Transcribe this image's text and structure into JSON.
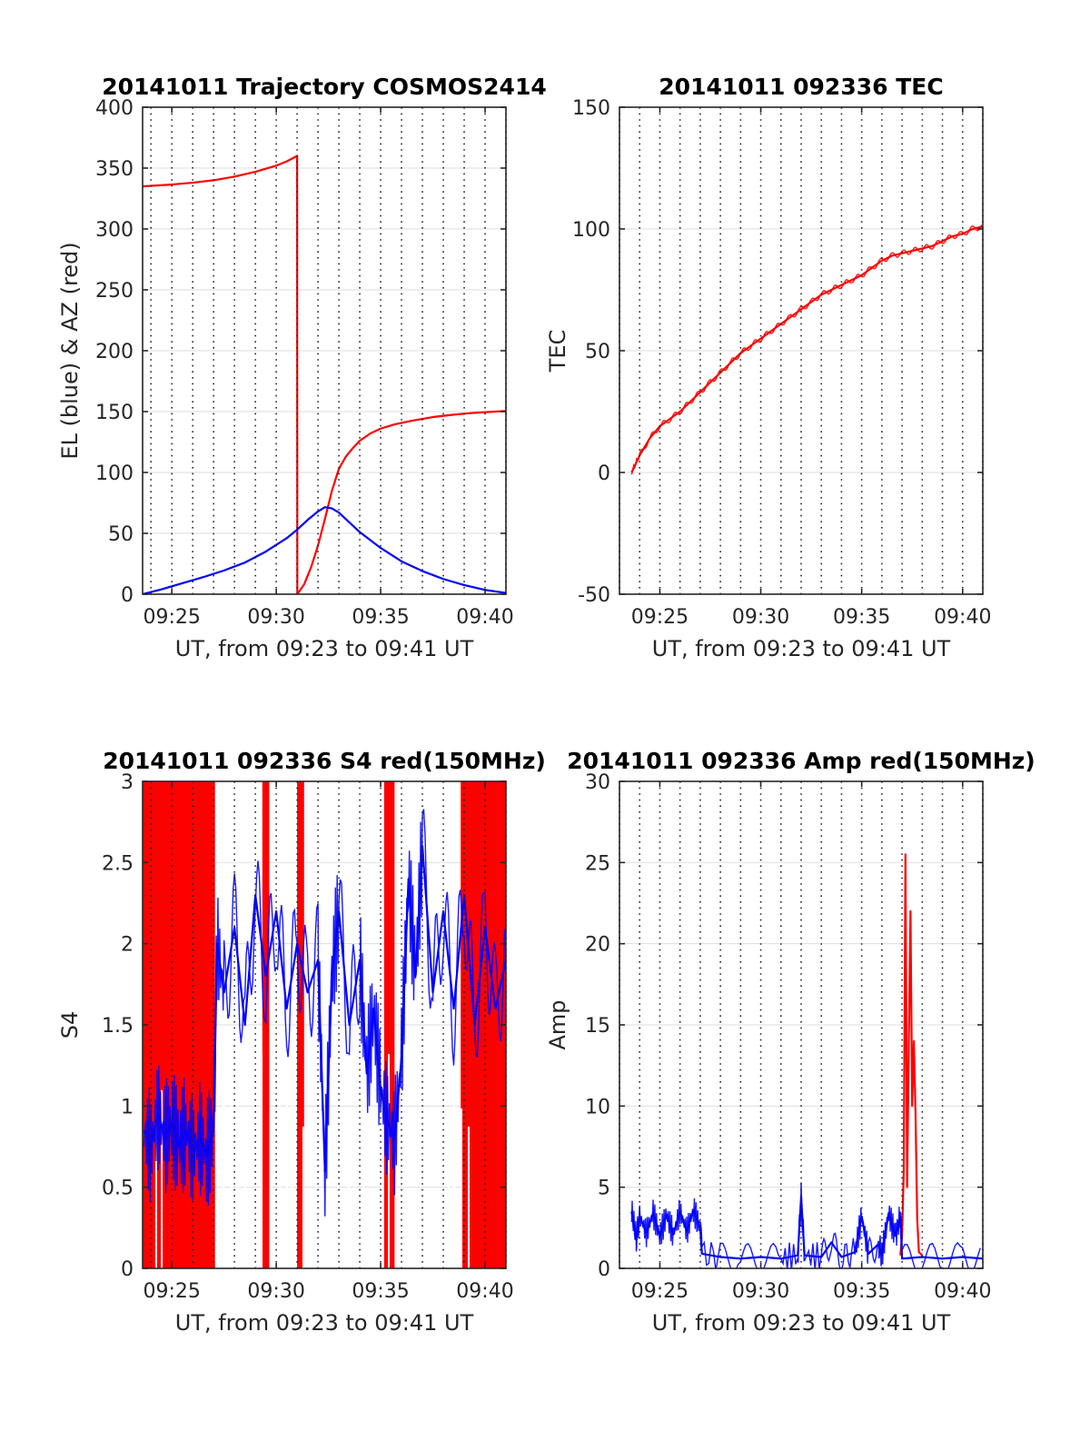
{
  "colors": {
    "el": "#0000ff",
    "az": "#ff0000",
    "tec": "#ff0000",
    "s4_red": "#ff0000",
    "s4_blue": "#0000ff",
    "amp_red": "#ff0000",
    "amp_blue": "#0000ff",
    "grid": "#262626",
    "hgrid": "#dedede"
  },
  "chart_data": [
    {
      "id": "trajectory",
      "type": "line",
      "title": "20141011 Trajectory COSMOS2414",
      "xlabel": "UT, from 09:23 to 09:41 UT",
      "ylabel": "EL (blue) & AZ (red)",
      "xlim": [
        "09:23:36",
        "09:41:00"
      ],
      "ylim": [
        0,
        400
      ],
      "yticks": [
        0,
        50,
        100,
        150,
        200,
        250,
        300,
        350,
        400
      ],
      "xticks": [
        {
          "t": "09:25:00",
          "label": "09:25"
        },
        {
          "t": "09:30:00",
          "label": "09:30"
        },
        {
          "t": "09:35:00",
          "label": "09:35"
        },
        {
          "t": "09:40:00",
          "label": "09:40"
        }
      ],
      "vgrid_every_minutes": 1,
      "series": [
        {
          "key": "az",
          "points": [
            [
              "09:23:36",
              335
            ],
            [
              "09:25:00",
              336.5
            ],
            [
              "09:26:00",
              338
            ],
            [
              "09:27:00",
              340
            ],
            [
              "09:28:00",
              343
            ],
            [
              "09:29:00",
              347
            ],
            [
              "09:30:00",
              352
            ],
            [
              "09:30:30",
              355.5
            ],
            [
              "09:31:00",
              360
            ],
            [
              "09:31:00.5",
              0
            ],
            [
              "09:31:20",
              8
            ],
            [
              "09:31:40",
              22
            ],
            [
              "09:32:00",
              40
            ],
            [
              "09:32:20",
              62
            ],
            [
              "09:32:40",
              85
            ],
            [
              "09:33:00",
              103
            ],
            [
              "09:33:20",
              113
            ],
            [
              "09:33:40",
              120
            ],
            [
              "09:34:00",
              126
            ],
            [
              "09:34:30",
              132
            ],
            [
              "09:35:00",
              136
            ],
            [
              "09:35:40",
              139.5
            ],
            [
              "09:36:30",
              142.5
            ],
            [
              "09:37:30",
              145.5
            ],
            [
              "09:38:30",
              147.5
            ],
            [
              "09:39:30",
              149
            ],
            [
              "09:40:30",
              150
            ],
            [
              "09:41:00",
              150.5
            ]
          ]
        },
        {
          "key": "el",
          "points": [
            [
              "09:23:36",
              0
            ],
            [
              "09:24:30",
              4
            ],
            [
              "09:25:30",
              9
            ],
            [
              "09:26:30",
              14
            ],
            [
              "09:27:30",
              19.5
            ],
            [
              "09:28:30",
              26
            ],
            [
              "09:29:30",
              35
            ],
            [
              "09:30:30",
              46
            ],
            [
              "09:31:00",
              53
            ],
            [
              "09:31:30",
              61
            ],
            [
              "09:32:00",
              68
            ],
            [
              "09:32:20",
              71.5
            ],
            [
              "09:32:40",
              70.5
            ],
            [
              "09:33:00",
              67
            ],
            [
              "09:33:30",
              59
            ],
            [
              "09:34:00",
              51
            ],
            [
              "09:35:00",
              38
            ],
            [
              "09:36:00",
              27
            ],
            [
              "09:37:00",
              19
            ],
            [
              "09:38:00",
              12.5
            ],
            [
              "09:39:00",
              7.5
            ],
            [
              "09:40:00",
              3.5
            ],
            [
              "09:41:00",
              1
            ]
          ]
        }
      ]
    },
    {
      "id": "tec",
      "type": "line",
      "title": "20141011 092336 TEC",
      "xlabel": "UT, from 09:23 to 09:41 UT",
      "ylabel": "TEC",
      "xlim": [
        "09:23:00",
        "09:41:00"
      ],
      "ylim": [
        -50,
        150
      ],
      "yticks": [
        -50,
        0,
        50,
        100,
        150
      ],
      "xticks": [
        {
          "t": "09:25:00",
          "label": "09:25"
        },
        {
          "t": "09:30:00",
          "label": "09:30"
        },
        {
          "t": "09:35:00",
          "label": "09:35"
        },
        {
          "t": "09:40:00",
          "label": "09:40"
        }
      ],
      "vgrid_every_minutes": 1,
      "series": [
        {
          "key": "tec",
          "points": [
            [
              "09:23:36",
              0
            ],
            [
              "09:24:00",
              7
            ],
            [
              "09:24:30",
              14
            ],
            [
              "09:25:00",
              19
            ],
            [
              "09:25:30",
              22
            ],
            [
              "09:26:00",
              25
            ],
            [
              "09:26:30",
              29
            ],
            [
              "09:27:00",
              33
            ],
            [
              "09:27:30",
              37
            ],
            [
              "09:28:00",
              41
            ],
            [
              "09:28:30",
              45
            ],
            [
              "09:29:00",
              49
            ],
            [
              "09:29:30",
              52
            ],
            [
              "09:30:00",
              55
            ],
            [
              "09:30:30",
              58
            ],
            [
              "09:31:00",
              61
            ],
            [
              "09:31:30",
              64
            ],
            [
              "09:32:00",
              67
            ],
            [
              "09:32:30",
              70
            ],
            [
              "09:33:00",
              73
            ],
            [
              "09:33:30",
              75
            ],
            [
              "09:34:00",
              77
            ],
            [
              "09:34:30",
              79
            ],
            [
              "09:35:00",
              81
            ],
            [
              "09:35:30",
              84
            ],
            [
              "09:36:00",
              87
            ],
            [
              "09:36:30",
              89
            ],
            [
              "09:37:00",
              90
            ],
            [
              "09:37:30",
              91
            ],
            [
              "09:38:00",
              92
            ],
            [
              "09:38:30",
              93
            ],
            [
              "09:39:00",
              95
            ],
            [
              "09:39:30",
              97
            ],
            [
              "09:40:00",
              98
            ],
            [
              "09:40:30",
              100
            ],
            [
              "09:41:00",
              101
            ]
          ]
        }
      ]
    },
    {
      "id": "s4",
      "type": "line",
      "title": "20141011 092336 S4 red(150MHz)",
      "xlabel": "UT, from 09:23 to 09:41 UT",
      "ylabel": "S4",
      "xlim": [
        "09:23:36",
        "09:41:00"
      ],
      "ylim": [
        0,
        3
      ],
      "yticks": [
        0,
        0.5,
        1,
        1.5,
        2,
        2.5,
        3
      ],
      "xticks": [
        {
          "t": "09:25:00",
          "label": "09:25"
        },
        {
          "t": "09:30:00",
          "label": "09:30"
        },
        {
          "t": "09:35:00",
          "label": "09:35"
        },
        {
          "t": "09:40:00",
          "label": "09:40"
        }
      ],
      "vgrid_every_minutes": 1,
      "red_saturated_bands": [
        [
          "09:23:36",
          "09:27:04"
        ],
        [
          "09:29:20",
          "09:29:40"
        ],
        [
          "09:31:00",
          "09:31:20"
        ],
        [
          "09:35:10",
          "09:35:40"
        ],
        [
          "09:38:50",
          "09:41:00"
        ]
      ],
      "series": [
        {
          "key": "s4_blue",
          "points": [
            [
              "09:23:40",
              0.85
            ],
            [
              "09:24:00",
              0.75
            ],
            [
              "09:24:20",
              0.95
            ],
            [
              "09:24:40",
              0.8
            ],
            [
              "09:25:00",
              0.9
            ],
            [
              "09:25:20",
              0.75
            ],
            [
              "09:25:40",
              0.85
            ],
            [
              "09:26:00",
              0.72
            ],
            [
              "09:26:20",
              0.8
            ],
            [
              "09:26:40",
              0.7
            ],
            [
              "09:27:00",
              0.85
            ],
            [
              "09:27:10",
              2.0
            ],
            [
              "09:27:30",
              1.7
            ],
            [
              "09:28:00",
              2.1
            ],
            [
              "09:28:30",
              1.5
            ],
            [
              "09:29:00",
              2.3
            ],
            [
              "09:29:30",
              1.8
            ],
            [
              "09:30:00",
              2.2
            ],
            [
              "09:30:30",
              1.6
            ],
            [
              "09:31:00",
              2.0
            ],
            [
              "09:31:30",
              1.7
            ],
            [
              "09:32:00",
              1.9
            ],
            [
              "09:32:20",
              0.6
            ],
            [
              "09:32:40",
              1.8
            ],
            [
              "09:33:00",
              2.2
            ],
            [
              "09:33:30",
              1.5
            ],
            [
              "09:34:00",
              1.9
            ],
            [
              "09:34:20",
              1.2
            ],
            [
              "09:34:40",
              1.6
            ],
            [
              "09:35:00",
              1.1
            ],
            [
              "09:35:20",
              0.9
            ],
            [
              "09:35:40",
              0.8
            ],
            [
              "09:36:00",
              1.3
            ],
            [
              "09:36:20",
              2.4
            ],
            [
              "09:36:40",
              1.8
            ],
            [
              "09:37:00",
              2.6
            ],
            [
              "09:37:30",
              1.7
            ],
            [
              "09:38:00",
              2.2
            ],
            [
              "09:38:30",
              1.6
            ],
            [
              "09:39:00",
              2.3
            ],
            [
              "09:39:30",
              1.5
            ],
            [
              "09:40:00",
              2.1
            ],
            [
              "09:40:30",
              1.6
            ],
            [
              "09:41:00",
              1.9
            ]
          ]
        }
      ]
    },
    {
      "id": "amp",
      "type": "line",
      "title": "20141011 092336 Amp red(150MHz)",
      "xlabel": "UT, from 09:23 to 09:41 UT",
      "ylabel": "Amp",
      "xlim": [
        "09:23:00",
        "09:41:00"
      ],
      "ylim": [
        0,
        30
      ],
      "yticks": [
        0,
        5,
        10,
        15,
        20,
        25,
        30
      ],
      "xticks": [
        {
          "t": "09:25:00",
          "label": "09:25"
        },
        {
          "t": "09:30:00",
          "label": "09:30"
        },
        {
          "t": "09:35:00",
          "label": "09:35"
        },
        {
          "t": "09:40:00",
          "label": "09:40"
        }
      ],
      "vgrid_every_minutes": 1,
      "series": [
        {
          "key": "amp_red",
          "points": [
            [
              "09:36:55",
              0.8
            ],
            [
              "09:37:00",
              2
            ],
            [
              "09:37:05",
              6
            ],
            [
              "09:37:10",
              25.5
            ],
            [
              "09:37:15",
              5
            ],
            [
              "09:37:20",
              14
            ],
            [
              "09:37:25",
              22
            ],
            [
              "09:37:30",
              10
            ],
            [
              "09:37:35",
              14
            ],
            [
              "09:37:40",
              9.5
            ],
            [
              "09:37:45",
              3
            ],
            [
              "09:37:50",
              1
            ],
            [
              "09:38:00",
              0.8
            ]
          ]
        },
        {
          "key": "amp_blue",
          "points": [
            [
              "09:23:36",
              3.5
            ],
            [
              "09:23:50",
              1.8
            ],
            [
              "09:24:00",
              3.2
            ],
            [
              "09:24:20",
              2.2
            ],
            [
              "09:24:40",
              3.4
            ],
            [
              "09:25:00",
              2.0
            ],
            [
              "09:25:20",
              3.3
            ],
            [
              "09:25:40",
              2.1
            ],
            [
              "09:26:00",
              3.5
            ],
            [
              "09:26:20",
              2.3
            ],
            [
              "09:26:40",
              3.6
            ],
            [
              "09:27:00",
              2.5
            ],
            [
              "09:27:05",
              0.9
            ],
            [
              "09:28:00",
              0.7
            ],
            [
              "09:29:00",
              0.6
            ],
            [
              "09:30:00",
              0.7
            ],
            [
              "09:31:00",
              0.6
            ],
            [
              "09:31:50",
              0.8
            ],
            [
              "09:32:00",
              4.4
            ],
            [
              "09:32:10",
              0.8
            ],
            [
              "09:33:00",
              0.7
            ],
            [
              "09:33:30",
              1.6
            ],
            [
              "09:34:00",
              0.7
            ],
            [
              "09:34:40",
              1.0
            ],
            [
              "09:35:00",
              3.2
            ],
            [
              "09:35:20",
              0.9
            ],
            [
              "09:35:50",
              1.5
            ],
            [
              "09:36:00",
              0.8
            ],
            [
              "09:36:20",
              3.4
            ],
            [
              "09:36:40",
              2.0
            ],
            [
              "09:36:55",
              3.2
            ],
            [
              "09:37:00",
              0.6
            ],
            [
              "09:38:00",
              0.7
            ],
            [
              "09:39:00",
              0.6
            ],
            [
              "09:40:00",
              0.7
            ],
            [
              "09:41:00",
              0.6
            ]
          ]
        }
      ]
    }
  ]
}
